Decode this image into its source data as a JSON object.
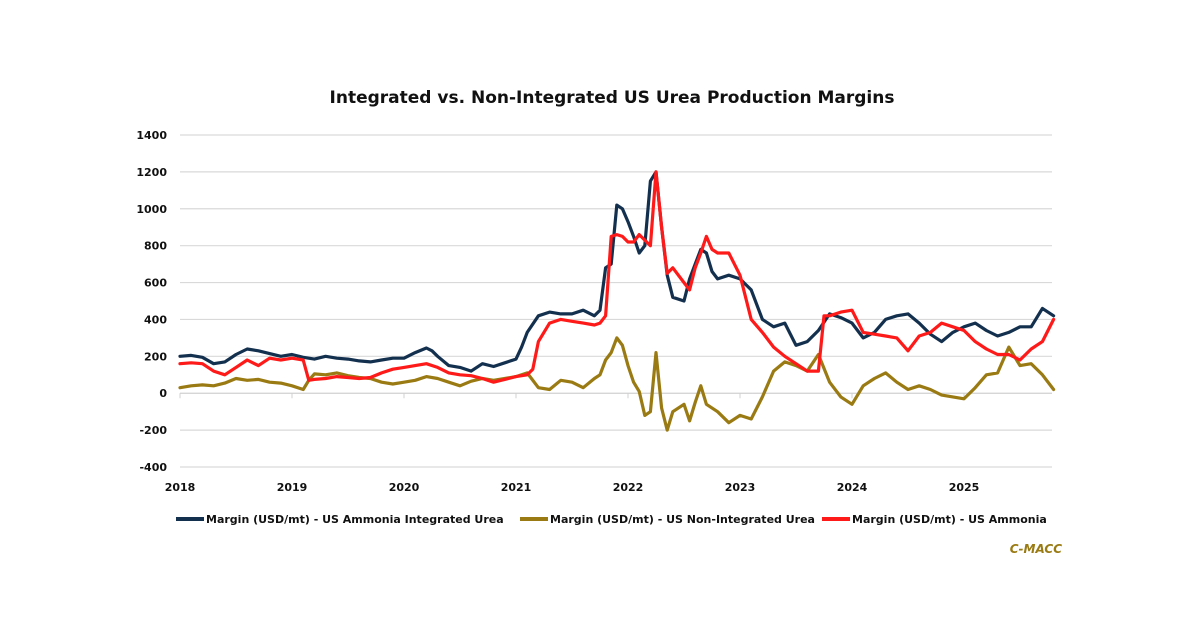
{
  "chart_data": {
    "type": "line",
    "title": "Integrated vs. Non-Integrated US Urea Production Margins",
    "xlabel": "",
    "ylabel": "",
    "xlim": [
      2018,
      2025.8
    ],
    "ylim": [
      -400,
      1400
    ],
    "yticks": [
      -400,
      -200,
      0,
      200,
      400,
      600,
      800,
      1000,
      1200,
      1400
    ],
    "xticks": [
      "2018",
      "2019",
      "2020",
      "2021",
      "2022",
      "2023",
      "2024",
      "2025"
    ],
    "grid": true,
    "legend_position": "bottom",
    "series": [
      {
        "name": "Margin (USD/mt) - US Ammonia Integrated Urea",
        "color": "#14304f",
        "x": [
          2018.0,
          2018.1,
          2018.2,
          2018.3,
          2018.4,
          2018.5,
          2018.6,
          2018.7,
          2018.8,
          2018.9,
          2019.0,
          2019.1,
          2019.2,
          2019.3,
          2019.4,
          2019.5,
          2019.6,
          2019.7,
          2019.8,
          2019.9,
          2020.0,
          2020.1,
          2020.2,
          2020.25,
          2020.3,
          2020.4,
          2020.5,
          2020.6,
          2020.7,
          2020.8,
          2020.9,
          2021.0,
          2021.05,
          2021.1,
          2021.2,
          2021.3,
          2021.4,
          2021.5,
          2021.6,
          2021.7,
          2021.75,
          2021.8,
          2021.85,
          2021.9,
          2021.95,
          2022.0,
          2022.05,
          2022.1,
          2022.15,
          2022.2,
          2022.25,
          2022.3,
          2022.35,
          2022.4,
          2022.5,
          2022.55,
          2022.6,
          2022.65,
          2022.7,
          2022.75,
          2022.8,
          2022.9,
          2023.0,
          2023.1,
          2023.2,
          2023.3,
          2023.4,
          2023.5,
          2023.6,
          2023.7,
          2023.8,
          2023.9,
          2024.0,
          2024.1,
          2024.2,
          2024.3,
          2024.4,
          2024.5,
          2024.6,
          2024.7,
          2024.8,
          2024.9,
          2025.0,
          2025.1,
          2025.2,
          2025.3,
          2025.4,
          2025.5,
          2025.6,
          2025.7,
          2025.8
        ],
        "values": [
          200,
          205,
          195,
          160,
          170,
          210,
          240,
          230,
          215,
          200,
          210,
          195,
          185,
          200,
          190,
          185,
          175,
          170,
          180,
          190,
          190,
          220,
          245,
          230,
          200,
          150,
          140,
          120,
          160,
          145,
          165,
          185,
          250,
          330,
          420,
          440,
          430,
          430,
          450,
          420,
          450,
          680,
          700,
          1020,
          1000,
          930,
          850,
          760,
          800,
          1150,
          1200,
          900,
          640,
          520,
          500,
          620,
          700,
          780,
          760,
          660,
          620,
          640,
          620,
          560,
          400,
          360,
          380,
          260,
          280,
          340,
          430,
          410,
          380,
          300,
          330,
          400,
          420,
          430,
          380,
          320,
          280,
          330,
          360,
          380,
          340,
          310,
          330,
          360,
          360,
          460,
          420
        ]
      },
      {
        "name": "Margin (USD/mt) - US Non-Integrated Urea",
        "color": "#9a7a12",
        "x": [
          2018.0,
          2018.1,
          2018.2,
          2018.3,
          2018.4,
          2018.5,
          2018.6,
          2018.7,
          2018.8,
          2018.9,
          2019.0,
          2019.1,
          2019.15,
          2019.2,
          2019.3,
          2019.4,
          2019.5,
          2019.6,
          2019.7,
          2019.8,
          2019.9,
          2020.0,
          2020.1,
          2020.2,
          2020.3,
          2020.4,
          2020.5,
          2020.6,
          2020.7,
          2020.8,
          2020.9,
          2021.0,
          2021.1,
          2021.2,
          2021.3,
          2021.4,
          2021.5,
          2021.6,
          2021.7,
          2021.75,
          2021.8,
          2021.85,
          2021.9,
          2021.95,
          2022.0,
          2022.05,
          2022.1,
          2022.15,
          2022.2,
          2022.25,
          2022.3,
          2022.35,
          2022.4,
          2022.5,
          2022.55,
          2022.6,
          2022.65,
          2022.7,
          2022.8,
          2022.9,
          2023.0,
          2023.1,
          2023.2,
          2023.3,
          2023.4,
          2023.5,
          2023.6,
          2023.7,
          2023.8,
          2023.9,
          2024.0,
          2024.1,
          2024.2,
          2024.3,
          2024.4,
          2024.5,
          2024.6,
          2024.7,
          2024.8,
          2024.9,
          2025.0,
          2025.1,
          2025.2,
          2025.3,
          2025.4,
          2025.5,
          2025.6,
          2025.7,
          2025.8
        ],
        "values": [
          30,
          40,
          45,
          40,
          55,
          80,
          70,
          75,
          60,
          55,
          40,
          20,
          70,
          105,
          100,
          110,
          95,
          85,
          80,
          60,
          50,
          60,
          70,
          90,
          80,
          60,
          40,
          65,
          80,
          70,
          80,
          90,
          110,
          30,
          20,
          70,
          60,
          30,
          80,
          100,
          180,
          220,
          300,
          260,
          150,
          60,
          10,
          -120,
          -100,
          220,
          -80,
          -200,
          -100,
          -60,
          -150,
          -50,
          40,
          -60,
          -100,
          -160,
          -120,
          -140,
          -20,
          120,
          170,
          150,
          120,
          210,
          60,
          -20,
          -60,
          40,
          80,
          110,
          60,
          20,
          40,
          20,
          -10,
          -20,
          -30,
          30,
          100,
          110,
          250,
          150,
          160,
          100,
          20
        ]
      },
      {
        "name": "Margin (USD/mt) - US Ammonia",
        "color": "#ff1a1a",
        "x": [
          2018.0,
          2018.1,
          2018.2,
          2018.3,
          2018.4,
          2018.5,
          2018.6,
          2018.7,
          2018.8,
          2018.9,
          2019.0,
          2019.1,
          2019.15,
          2019.2,
          2019.3,
          2019.4,
          2019.5,
          2019.6,
          2019.7,
          2019.8,
          2019.9,
          2020.0,
          2020.1,
          2020.2,
          2020.3,
          2020.4,
          2020.5,
          2020.6,
          2020.7,
          2020.8,
          2020.9,
          2021.0,
          2021.1,
          2021.15,
          2021.2,
          2021.3,
          2021.4,
          2021.5,
          2021.6,
          2021.7,
          2021.75,
          2021.8,
          2021.85,
          2021.9,
          2021.95,
          2022.0,
          2022.05,
          2022.1,
          2022.15,
          2022.2,
          2022.25,
          2022.3,
          2022.35,
          2022.4,
          2022.5,
          2022.55,
          2022.6,
          2022.65,
          2022.7,
          2022.75,
          2022.8,
          2022.9,
          2023.0,
          2023.1,
          2023.2,
          2023.3,
          2023.4,
          2023.5,
          2023.6,
          2023.7,
          2023.75,
          2023.8,
          2023.9,
          2024.0,
          2024.1,
          2024.2,
          2024.3,
          2024.4,
          2024.5,
          2024.6,
          2024.7,
          2024.8,
          2024.9,
          2025.0,
          2025.1,
          2025.2,
          2025.3,
          2025.4,
          2025.5,
          2025.6,
          2025.7,
          2025.8
        ],
        "values": [
          160,
          165,
          160,
          120,
          100,
          140,
          180,
          150,
          190,
          180,
          190,
          180,
          70,
          75,
          80,
          90,
          85,
          80,
          85,
          110,
          130,
          140,
          150,
          160,
          140,
          110,
          100,
          95,
          80,
          60,
          75,
          90,
          100,
          130,
          280,
          380,
          400,
          390,
          380,
          370,
          380,
          420,
          850,
          860,
          850,
          820,
          820,
          860,
          830,
          800,
          1200,
          900,
          650,
          680,
          600,
          560,
          680,
          760,
          850,
          780,
          760,
          760,
          640,
          400,
          330,
          250,
          200,
          160,
          120,
          120,
          420,
          420,
          440,
          450,
          330,
          320,
          310,
          300,
          230,
          310,
          330,
          380,
          360,
          340,
          280,
          240,
          210,
          210,
          180,
          240,
          280,
          400
        ]
      }
    ]
  },
  "source_label": "C-MACC"
}
